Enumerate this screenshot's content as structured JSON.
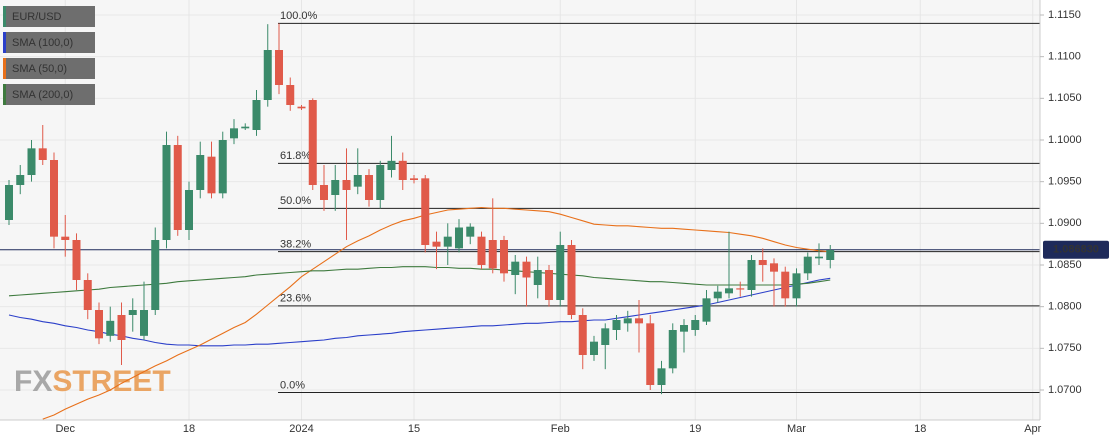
{
  "chart_data": {
    "type": "candlestick",
    "categories": [
      null,
      null,
      null,
      null,
      null,
      "Dec",
      null,
      null,
      null,
      null,
      null,
      null,
      null,
      null,
      null,
      null,
      "18",
      null,
      null,
      null,
      null,
      null,
      null,
      null,
      null,
      null,
      "2024",
      null,
      null,
      null,
      null,
      null,
      null,
      null,
      null,
      null,
      "15",
      null,
      null,
      null,
      null,
      null,
      null,
      null,
      null,
      null,
      null,
      null,
      null,
      "Feb",
      null,
      null,
      null,
      null,
      null,
      null,
      null,
      null,
      null,
      null,
      null,
      "19",
      null,
      null,
      null,
      null,
      null,
      null,
      null,
      null,
      "Mar",
      null,
      null,
      null,
      null,
      null,
      null,
      null,
      null,
      null,
      null,
      "18",
      null,
      null,
      null,
      null,
      null,
      null,
      null,
      null,
      null,
      "Apr"
    ],
    "candles": {
      "name": "EUR/USD",
      "color": "#3b8a6a",
      "up_color": "#3b8a6a",
      "down_color": "#e05a4a",
      "open": [
        1.0904,
        1.0946,
        1.0958,
        1.099,
        1.0976,
        1.0884,
        1.088,
        1.0832,
        1.0796,
        1.0765,
        1.079,
        1.079,
        1.0765,
        1.0796,
        1.088,
        1.0994,
        1.0892,
        1.094,
        1.098,
        1.0936,
        1.1002,
        1.1014,
        1.1012,
        1.1048,
        1.1108,
        1.1066,
        1.104,
        1.1048,
        1.0946,
        1.0934,
        1.0952,
        1.0944,
        1.0958,
        1.0928,
        1.0964,
        1.0975,
        1.0954,
        1.0954,
        1.0878,
        1.0872,
        1.087,
        1.0884,
        1.0884,
        1.088,
        1.088,
        1.0838,
        1.0854,
        1.0826,
        1.0844,
        1.0808,
        1.0874,
        1.079,
        1.0742,
        1.0754,
        1.0772,
        1.078,
        1.0786,
        1.078,
        1.0706,
        1.0726,
        1.077,
        1.0772,
        1.0782,
        1.081,
        1.0816,
        1.0822,
        1.082,
        1.0856,
        1.0852,
        1.0842,
        1.081,
        1.084,
        1.0858,
        1.0856,
        null,
        null,
        null,
        null,
        null,
        null,
        null,
        null,
        null,
        null,
        null,
        null,
        null,
        null,
        null,
        null,
        null,
        null
      ],
      "high": [
        1.0952,
        1.097,
        1.1,
        1.1018,
        1.0985,
        1.091,
        1.0888,
        1.084,
        1.0805,
        1.08,
        1.0805,
        1.081,
        1.083,
        1.0895,
        1.101,
        1.1005,
        1.095,
        1.0998,
        1.0998,
        1.101,
        1.1025,
        1.102,
        1.106,
        1.1139,
        1.114,
        1.1075,
        1.1042,
        1.105,
        1.097,
        1.097,
        1.099,
        1.099,
        1.0965,
        1.0975,
        1.1005,
        1.0985,
        1.0958,
        1.0958,
        1.089,
        1.09,
        1.0905,
        1.09,
        1.089,
        1.093,
        1.0885,
        1.0862,
        1.086,
        1.086,
        1.085,
        1.089,
        1.088,
        1.0798,
        1.0765,
        1.078,
        1.079,
        1.0795,
        1.0808,
        1.079,
        1.0735,
        1.078,
        1.0785,
        1.079,
        1.082,
        1.0825,
        1.089,
        1.083,
        1.0862,
        1.087,
        1.0858,
        1.0848,
        1.0846,
        1.0865,
        1.0876,
        1.0874,
        null,
        null,
        null,
        null,
        null,
        null,
        null,
        null,
        null,
        null,
        null,
        null,
        null,
        null,
        null,
        null,
        null,
        null
      ],
      "low": [
        1.0898,
        1.0935,
        1.095,
        1.097,
        1.087,
        1.086,
        1.082,
        1.0785,
        1.0755,
        1.0758,
        1.073,
        1.077,
        1.076,
        1.079,
        1.087,
        1.0885,
        1.088,
        1.093,
        1.093,
        1.093,
        1.0995,
        1.1012,
        1.1005,
        1.104,
        1.1055,
        1.1035,
        1.1036,
        1.094,
        1.0915,
        1.0915,
        1.088,
        1.0935,
        1.092,
        1.0918,
        1.0955,
        1.094,
        1.0948,
        1.0865,
        1.0845,
        1.085,
        1.0865,
        1.0875,
        1.0845,
        1.084,
        1.083,
        1.0815,
        1.08,
        1.081,
        1.08,
        1.08,
        1.0785,
        1.0725,
        1.0735,
        1.0725,
        1.076,
        1.077,
        1.0745,
        1.07,
        1.0695,
        1.072,
        1.0745,
        1.0765,
        1.0778,
        1.0805,
        1.081,
        1.0812,
        1.0812,
        1.083,
        1.08,
        1.08,
        1.08,
        1.0832,
        1.085,
        1.0846,
        null,
        null,
        null,
        null,
        null,
        null,
        null,
        null,
        null,
        null,
        null,
        null,
        null,
        null,
        null,
        null,
        null,
        null
      ],
      "close": [
        1.0946,
        1.0958,
        1.099,
        1.0976,
        1.0884,
        1.088,
        1.0832,
        1.0796,
        1.0762,
        1.0783,
        1.076,
        1.0796,
        1.0796,
        1.088,
        1.0994,
        1.0892,
        1.094,
        1.0982,
        1.0936,
        1.1,
        1.1014,
        1.1016,
        1.1048,
        1.1108,
        1.1066,
        1.1042,
        1.1038,
        1.0946,
        1.0928,
        1.0952,
        1.094,
        1.0958,
        1.0928,
        1.097,
        1.0975,
        1.0952,
        1.0952,
        1.0874,
        1.0872,
        1.0884,
        1.0895,
        1.0896,
        1.085,
        1.0846,
        1.084,
        1.0854,
        1.0835,
        1.0844,
        1.0808,
        1.0874,
        1.079,
        1.0742,
        1.0758,
        1.0774,
        1.0784,
        1.0786,
        1.078,
        1.0706,
        1.0726,
        1.0772,
        1.0778,
        1.0784,
        1.081,
        1.0818,
        1.0822,
        1.0821,
        1.0856,
        1.085,
        1.0842,
        1.081,
        1.084,
        1.086,
        1.086,
        1.0868,
        null,
        null,
        null,
        null,
        null,
        null,
        null,
        null,
        null,
        null,
        null,
        null,
        null,
        null,
        null,
        null,
        null,
        null
      ]
    },
    "series": [
      {
        "name": "SMA (100,0)",
        "color": "#2b3fc9",
        "values": [
          1.079,
          1.0787,
          1.0785,
          1.0782,
          1.078,
          1.0777,
          1.0775,
          1.0772,
          1.077,
          1.0767,
          1.0765,
          1.0762,
          1.076,
          1.0757,
          1.0755,
          1.0754,
          1.0754,
          1.0753,
          1.0753,
          1.0753,
          1.0754,
          1.0754,
          1.0755,
          1.0755,
          1.0756,
          1.0757,
          1.0758,
          1.0759,
          1.076,
          1.0762,
          1.0763,
          1.0765,
          1.0766,
          1.0767,
          1.0768,
          1.077,
          1.0771,
          1.0772,
          1.0773,
          1.0774,
          1.0775,
          1.0776,
          1.0777,
          1.0777,
          1.0778,
          1.0779,
          1.078,
          1.078,
          1.0781,
          1.0782,
          1.0782,
          1.0783,
          1.0784,
          1.0784,
          1.0786,
          1.0788,
          1.079,
          1.0792,
          1.0794,
          1.0796,
          1.0798,
          1.08,
          1.0802,
          1.0805,
          1.0808,
          1.0811,
          1.0814,
          1.0817,
          1.082,
          1.0823,
          1.0826,
          1.0829,
          1.0832,
          1.0834,
          null,
          null,
          null,
          null,
          null,
          null,
          null,
          null,
          null,
          null,
          null,
          null,
          null,
          null,
          null,
          null,
          null,
          null
        ]
      },
      {
        "name": "SMA (50,0)",
        "color": "#e8701a",
        "values": [
          null,
          null,
          null,
          1.0665,
          1.067,
          1.0677,
          1.0683,
          1.0689,
          1.0694,
          1.07,
          1.0708,
          1.0715,
          1.0722,
          1.0729,
          1.0735,
          1.0742,
          1.0748,
          1.0754,
          1.0761,
          1.0768,
          1.0775,
          1.0781,
          1.0791,
          1.0802,
          1.0813,
          1.0824,
          1.0836,
          1.0845,
          1.0854,
          1.0863,
          1.0872,
          1.0879,
          1.0885,
          1.0892,
          1.0898,
          1.0903,
          1.0906,
          1.091,
          1.0913,
          1.0916,
          1.0917,
          1.0918,
          1.0919,
          1.0918,
          1.0918,
          1.0917,
          1.0916,
          1.0915,
          1.0914,
          1.0911,
          1.0907,
          1.0903,
          1.0899,
          1.0898,
          1.0897,
          1.0897,
          1.0896,
          1.0895,
          1.0894,
          1.0894,
          1.0893,
          1.0892,
          1.0891,
          1.089,
          1.0889,
          1.0887,
          1.0885,
          1.0882,
          1.0878,
          1.0874,
          1.0871,
          1.0869,
          1.0867,
          1.0866,
          null,
          null,
          null,
          null,
          null,
          null,
          null,
          null,
          null,
          null,
          null,
          null,
          null,
          null,
          null,
          null,
          null,
          null
        ]
      },
      {
        "name": "SMA (200,0)",
        "color": "#3e7a3e",
        "values": [
          1.0813,
          1.0814,
          1.0815,
          1.0816,
          1.0817,
          1.0818,
          1.0819,
          1.082,
          1.0821,
          1.0823,
          1.0824,
          1.0825,
          1.0826,
          1.0827,
          1.0828,
          1.083,
          1.0831,
          1.0832,
          1.0833,
          1.0834,
          1.0835,
          1.0836,
          1.0838,
          1.0839,
          1.084,
          1.0841,
          1.0842,
          1.0843,
          1.0843,
          1.0844,
          1.0845,
          1.0845,
          1.0846,
          1.0847,
          1.0847,
          1.0848,
          1.0848,
          1.0848,
          1.0847,
          1.0847,
          1.0846,
          1.0846,
          1.0845,
          1.0845,
          1.0844,
          1.0843,
          1.0842,
          1.0841,
          1.084,
          1.0839,
          1.0838,
          1.0837,
          1.0835,
          1.0834,
          1.0833,
          1.0832,
          1.0831,
          1.083,
          1.083,
          1.0829,
          1.0828,
          1.0827,
          1.0826,
          1.0826,
          1.0826,
          1.0826,
          1.0826,
          1.0826,
          1.0826,
          1.0826,
          1.0827,
          1.0828,
          1.083,
          1.0832,
          null,
          null,
          null,
          null,
          null,
          null,
          null,
          null,
          null,
          null,
          null,
          null,
          null,
          null,
          null,
          null,
          null,
          null
        ]
      }
    ],
    "levels": [
      {
        "text": "100.0%",
        "price": 1.114
      },
      {
        "text": "61.8%",
        "price": 1.0972
      },
      {
        "text": "50.0%",
        "price": 1.0918
      },
      {
        "text": "38.2%",
        "price": 1.0866
      },
      {
        "text": "23.6%",
        "price": 1.0801
      },
      {
        "text": "0.0%",
        "price": 1.0697
      }
    ],
    "last_price": {
      "value": 1.08683,
      "label": "1.086830"
    },
    "watermark": [
      "FX",
      "STREET"
    ],
    "ylim": [
      1.0664,
      1.1168
    ],
    "yticks": [
      {
        "value": 1.07,
        "label": "1.0700"
      },
      {
        "value": 1.075,
        "label": "1.0750"
      },
      {
        "value": 1.08,
        "label": "1.0800"
      },
      {
        "value": 1.085,
        "label": "1.0850"
      },
      {
        "value": 1.09,
        "label": "1.0900"
      },
      {
        "value": 1.095,
        "label": "1.0950"
      },
      {
        "value": 1.1,
        "label": "1.1000"
      },
      {
        "value": 1.105,
        "label": "1.1050"
      },
      {
        "value": 1.11,
        "label": "1.1100"
      },
      {
        "value": 1.115,
        "label": "1.1150"
      }
    ],
    "grid": true
  }
}
